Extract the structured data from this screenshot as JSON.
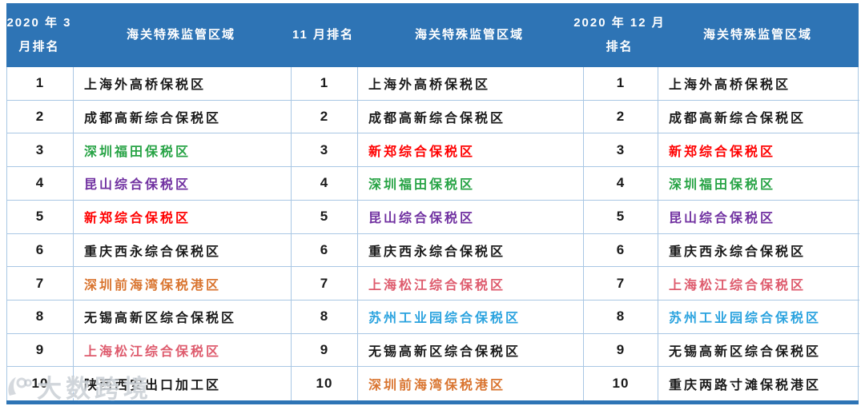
{
  "table": {
    "header_bg_color": "#2E74B5",
    "grid_line_color": "#A9C7E4",
    "zone_header": "海关特殊监管区域",
    "sections": [
      {
        "period_lines": [
          "2020 年 3",
          "月排名"
        ],
        "rows": [
          {
            "rank": "1",
            "name": "上海外高桥保税区",
            "color": "#1A1A1A"
          },
          {
            "rank": "2",
            "name": "成都高新综合保税区",
            "color": "#1A1A1A"
          },
          {
            "rank": "3",
            "name": "深圳福田保税区",
            "color": "#27A345"
          },
          {
            "rank": "4",
            "name": "昆山综合保税区",
            "color": "#7030A0"
          },
          {
            "rank": "5",
            "name": "新郑综合保税区",
            "color": "#FF0000"
          },
          {
            "rank": "6",
            "name": "重庆西永综合保税区",
            "color": "#1A1A1A"
          },
          {
            "rank": "7",
            "name": "深圳前海湾保税港区",
            "color": "#D9742F"
          },
          {
            "rank": "8",
            "name": "无锡高新区综合保税区",
            "color": "#1A1A1A"
          },
          {
            "rank": "9",
            "name": "上海松江综合保税区",
            "color": "#DE5B6D"
          },
          {
            "rank": "10",
            "name": "陕西西安出口加工区",
            "color": "#1A1A1A"
          }
        ]
      },
      {
        "period_lines": [
          "11 月排名"
        ],
        "rows": [
          {
            "rank": "1",
            "name": "上海外高桥保税区",
            "color": "#1A1A1A"
          },
          {
            "rank": "2",
            "name": "成都高新综合保税区",
            "color": "#1A1A1A"
          },
          {
            "rank": "3",
            "name": "新郑综合保税区",
            "color": "#FF0000"
          },
          {
            "rank": "4",
            "name": "深圳福田保税区",
            "color": "#27A345"
          },
          {
            "rank": "5",
            "name": "昆山综合保税区",
            "color": "#7030A0"
          },
          {
            "rank": "6",
            "name": "重庆西永综合保税区",
            "color": "#1A1A1A"
          },
          {
            "rank": "7",
            "name": "上海松江综合保税区",
            "color": "#DE5B6D"
          },
          {
            "rank": "8",
            "name": "苏州工业园综合保税区",
            "color": "#2BA3DF"
          },
          {
            "rank": "9",
            "name": "无锡高新区综合保税区",
            "color": "#1A1A1A"
          },
          {
            "rank": "10",
            "name": "深圳前海湾保税港区",
            "color": "#D9742F"
          }
        ]
      },
      {
        "period_lines": [
          "2020 年 12 月",
          "排名"
        ],
        "rows": [
          {
            "rank": "1",
            "name": "上海外高桥保税区",
            "color": "#1A1A1A"
          },
          {
            "rank": "2",
            "name": "成都高新综合保税区",
            "color": "#1A1A1A"
          },
          {
            "rank": "3",
            "name": "新郑综合保税区",
            "color": "#FF0000"
          },
          {
            "rank": "4",
            "name": "深圳福田保税区",
            "color": "#27A345"
          },
          {
            "rank": "5",
            "name": "昆山综合保税区",
            "color": "#7030A0"
          },
          {
            "rank": "6",
            "name": "重庆西永综合保税区",
            "color": "#1A1A1A"
          },
          {
            "rank": "7",
            "name": "上海松江综合保税区",
            "color": "#DE5B6D"
          },
          {
            "rank": "8",
            "name": "苏州工业园综合保税区",
            "color": "#2BA3DF"
          },
          {
            "rank": "9",
            "name": "无锡高新区综合保税区",
            "color": "#1A1A1A"
          },
          {
            "rank": "10",
            "name": "重庆两路寸滩保税港区",
            "color": "#1A1A1A"
          }
        ]
      }
    ]
  },
  "watermark": {
    "text": "大数跨境"
  }
}
